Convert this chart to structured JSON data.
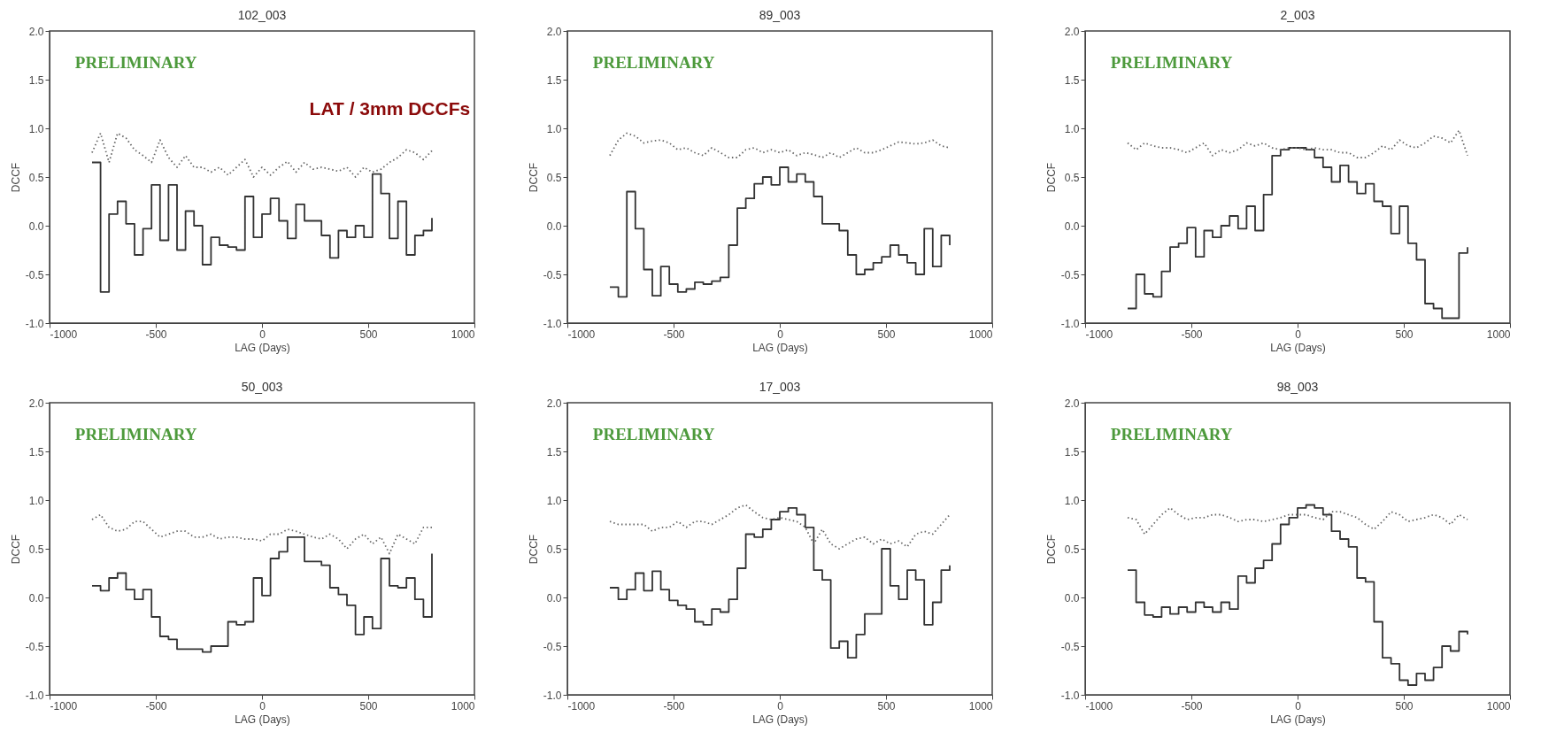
{
  "chart_data": [
    {
      "type": "step",
      "title": "102_003",
      "xlabel": "LAG (Days)",
      "ylabel": "DCCF",
      "annotations": [
        "PRELIMINARY",
        "LAT / 3mm DCCFs"
      ],
      "x": [
        -800,
        -760,
        -720,
        -680,
        -640,
        -600,
        -560,
        -520,
        -480,
        -440,
        -400,
        -360,
        -320,
        -280,
        -240,
        -200,
        -160,
        -120,
        -80,
        -40,
        0,
        40,
        80,
        120,
        160,
        200,
        240,
        280,
        320,
        360,
        400,
        440,
        480,
        520,
        560,
        600,
        640,
        680,
        720,
        760,
        800
      ],
      "series": [
        {
          "color": "#333333",
          "line_style": "solid",
          "values": [
            0.65,
            -0.68,
            0.12,
            0.25,
            0.02,
            -0.3,
            -0.03,
            0.42,
            -0.15,
            0.42,
            -0.25,
            0.15,
            0.0,
            -0.4,
            -0.12,
            -0.2,
            -0.22,
            -0.25,
            0.3,
            -0.12,
            0.12,
            0.28,
            0.05,
            -0.13,
            0.22,
            0.05,
            0.05,
            -0.1,
            -0.33,
            -0.05,
            -0.12,
            0.0,
            -0.12,
            0.53,
            0.33,
            -0.13,
            0.25,
            -0.3,
            -0.1,
            -0.05,
            0.08
          ]
        },
        {
          "type": "line",
          "color": "#666666",
          "line_style": "dotted",
          "values": [
            0.75,
            0.95,
            0.65,
            0.95,
            0.9,
            0.78,
            0.72,
            0.65,
            0.88,
            0.7,
            0.6,
            0.72,
            0.6,
            0.6,
            0.55,
            0.6,
            0.52,
            0.6,
            0.68,
            0.5,
            0.6,
            0.52,
            0.6,
            0.66,
            0.55,
            0.65,
            0.58,
            0.6,
            0.58,
            0.56,
            0.6,
            0.5,
            0.6,
            0.55,
            0.58,
            0.65,
            0.7,
            0.78,
            0.75,
            0.68,
            0.77
          ]
        }
      ],
      "xlim": [
        -1000,
        1000
      ],
      "xticks": [
        -1000,
        -500,
        0,
        500,
        1000
      ],
      "ylim": [
        -1,
        2
      ],
      "yticks": [
        {
          "value": -1,
          "label": "-1.0"
        },
        {
          "value": -0.5,
          "label": "-0.5"
        },
        {
          "value": 0,
          "label": "0.0"
        },
        {
          "value": 0.5,
          "label": "0.5"
        },
        {
          "value": 1,
          "label": "1.0"
        },
        {
          "value": 1.5,
          "label": "1.5"
        },
        {
          "value": 2,
          "label": "2.0"
        }
      ]
    },
    {
      "type": "step",
      "title": "89_003",
      "xlabel": "LAG (Days)",
      "ylabel": "DCCF",
      "annotations": [
        "PRELIMINARY"
      ],
      "x": [
        -800,
        -760,
        -720,
        -680,
        -640,
        -600,
        -560,
        -520,
        -480,
        -440,
        -400,
        -360,
        -320,
        -280,
        -240,
        -200,
        -160,
        -120,
        -80,
        -40,
        0,
        40,
        80,
        120,
        160,
        200,
        240,
        280,
        320,
        360,
        400,
        440,
        480,
        520,
        560,
        600,
        640,
        680,
        720,
        760,
        800
      ],
      "series": [
        {
          "color": "#333333",
          "line_style": "solid",
          "values": [
            -0.63,
            -0.73,
            0.35,
            -0.03,
            -0.45,
            -0.72,
            -0.42,
            -0.6,
            -0.68,
            -0.65,
            -0.58,
            -0.6,
            -0.57,
            -0.53,
            -0.2,
            0.18,
            0.28,
            0.43,
            0.5,
            0.42,
            0.6,
            0.45,
            0.53,
            0.45,
            0.3,
            0.02,
            0.02,
            -0.05,
            -0.3,
            -0.5,
            -0.45,
            -0.38,
            -0.32,
            -0.2,
            -0.3,
            -0.38,
            -0.5,
            -0.03,
            -0.42,
            -0.1,
            -0.2
          ]
        },
        {
          "type": "line",
          "color": "#666666",
          "line_style": "dotted",
          "values": [
            0.72,
            0.88,
            0.95,
            0.92,
            0.85,
            0.87,
            0.88,
            0.85,
            0.78,
            0.8,
            0.75,
            0.72,
            0.8,
            0.75,
            0.7,
            0.7,
            0.78,
            0.8,
            0.75,
            0.78,
            0.75,
            0.78,
            0.72,
            0.75,
            0.73,
            0.7,
            0.75,
            0.7,
            0.75,
            0.8,
            0.75,
            0.75,
            0.78,
            0.82,
            0.86,
            0.85,
            0.84,
            0.85,
            0.88,
            0.82,
            0.8
          ]
        }
      ],
      "xlim": [
        -1000,
        1000
      ],
      "xticks": [
        -1000,
        -500,
        0,
        500,
        1000
      ],
      "ylim": [
        -1,
        2
      ],
      "yticks": [
        {
          "value": -1,
          "label": "-1.0"
        },
        {
          "value": -0.5,
          "label": "-0.5"
        },
        {
          "value": 0,
          "label": "0.0"
        },
        {
          "value": 0.5,
          "label": "0.5"
        },
        {
          "value": 1,
          "label": "1.0"
        },
        {
          "value": 1.5,
          "label": "1.5"
        },
        {
          "value": 2,
          "label": "2.0"
        }
      ]
    },
    {
      "type": "step",
      "title": "2_003",
      "xlabel": "LAG (Days)",
      "ylabel": "DCCF",
      "annotations": [
        "PRELIMINARY"
      ],
      "x": [
        -800,
        -760,
        -720,
        -680,
        -640,
        -600,
        -560,
        -520,
        -480,
        -440,
        -400,
        -360,
        -320,
        -280,
        -240,
        -200,
        -160,
        -120,
        -80,
        -40,
        0,
        40,
        80,
        120,
        160,
        200,
        240,
        280,
        320,
        360,
        400,
        440,
        480,
        520,
        560,
        600,
        640,
        680,
        720,
        760,
        800
      ],
      "series": [
        {
          "color": "#333333",
          "line_style": "solid",
          "values": [
            -0.85,
            -0.5,
            -0.7,
            -0.73,
            -0.47,
            -0.22,
            -0.18,
            -0.02,
            -0.32,
            -0.05,
            -0.12,
            0.0,
            0.1,
            -0.03,
            0.2,
            -0.05,
            0.32,
            0.72,
            0.78,
            0.8,
            0.8,
            0.78,
            0.7,
            0.6,
            0.45,
            0.62,
            0.45,
            0.33,
            0.43,
            0.25,
            0.2,
            -0.08,
            0.2,
            -0.18,
            -0.35,
            -0.8,
            -0.85,
            -0.95,
            -0.95,
            -0.28,
            -0.22
          ]
        },
        {
          "type": "line",
          "color": "#666666",
          "line_style": "dotted",
          "values": [
            0.85,
            0.78,
            0.85,
            0.82,
            0.8,
            0.8,
            0.78,
            0.75,
            0.8,
            0.85,
            0.72,
            0.78,
            0.75,
            0.78,
            0.85,
            0.82,
            0.85,
            0.8,
            0.78,
            0.8,
            0.8,
            0.78,
            0.8,
            0.78,
            0.78,
            0.75,
            0.75,
            0.7,
            0.7,
            0.75,
            0.82,
            0.78,
            0.88,
            0.82,
            0.8,
            0.85,
            0.92,
            0.9,
            0.85,
            0.98,
            0.72
          ]
        }
      ],
      "xlim": [
        -1000,
        1000
      ],
      "xticks": [
        -1000,
        -500,
        0,
        500,
        1000
      ],
      "ylim": [
        -1,
        2
      ],
      "yticks": [
        {
          "value": -1,
          "label": "-1.0"
        },
        {
          "value": -0.5,
          "label": "-0.5"
        },
        {
          "value": 0,
          "label": "0.0"
        },
        {
          "value": 0.5,
          "label": "0.5"
        },
        {
          "value": 1,
          "label": "1.0"
        },
        {
          "value": 1.5,
          "label": "1.5"
        },
        {
          "value": 2,
          "label": "2.0"
        }
      ]
    },
    {
      "type": "step",
      "title": "50_003",
      "xlabel": "LAG (Days)",
      "ylabel": "DCCF",
      "annotations": [
        "PRELIMINARY"
      ],
      "x": [
        -800,
        -760,
        -720,
        -680,
        -640,
        -600,
        -560,
        -520,
        -480,
        -440,
        -400,
        -360,
        -320,
        -280,
        -240,
        -200,
        -160,
        -120,
        -80,
        -40,
        0,
        40,
        80,
        120,
        160,
        200,
        240,
        280,
        320,
        360,
        400,
        440,
        480,
        520,
        560,
        600,
        640,
        680,
        720,
        760,
        800
      ],
      "series": [
        {
          "color": "#333333",
          "line_style": "solid",
          "values": [
            0.12,
            0.07,
            0.2,
            0.25,
            0.08,
            -0.02,
            0.08,
            -0.2,
            -0.4,
            -0.43,
            -0.53,
            -0.53,
            -0.53,
            -0.56,
            -0.5,
            -0.5,
            -0.25,
            -0.28,
            -0.25,
            0.2,
            0.02,
            0.4,
            0.47,
            0.62,
            0.62,
            0.37,
            0.37,
            0.33,
            0.1,
            0.03,
            -0.08,
            -0.38,
            -0.2,
            -0.32,
            0.4,
            0.12,
            0.1,
            0.2,
            -0.02,
            -0.2,
            0.45
          ]
        },
        {
          "type": "line",
          "color": "#666666",
          "line_style": "dotted",
          "values": [
            0.8,
            0.85,
            0.72,
            0.68,
            0.7,
            0.78,
            0.78,
            0.7,
            0.62,
            0.65,
            0.68,
            0.68,
            0.62,
            0.62,
            0.65,
            0.6,
            0.62,
            0.62,
            0.6,
            0.6,
            0.58,
            0.65,
            0.65,
            0.7,
            0.68,
            0.65,
            0.62,
            0.6,
            0.65,
            0.6,
            0.5,
            0.6,
            0.65,
            0.55,
            0.62,
            0.45,
            0.65,
            0.6,
            0.55,
            0.72,
            0.72
          ]
        }
      ],
      "xlim": [
        -1000,
        1000
      ],
      "xticks": [
        -1000,
        -500,
        0,
        500,
        1000
      ],
      "ylim": [
        -1,
        2
      ],
      "yticks": [
        {
          "value": -1,
          "label": "-1.0"
        },
        {
          "value": -0.5,
          "label": "-0.5"
        },
        {
          "value": 0,
          "label": "0.0"
        },
        {
          "value": 0.5,
          "label": "0.5"
        },
        {
          "value": 1,
          "label": "1.0"
        },
        {
          "value": 1.5,
          "label": "1.5"
        },
        {
          "value": 2,
          "label": "2.0"
        }
      ]
    },
    {
      "type": "step",
      "title": "17_003",
      "xlabel": "LAG (Days)",
      "ylabel": "DCCF",
      "annotations": [
        "PRELIMINARY"
      ],
      "x": [
        -800,
        -760,
        -720,
        -680,
        -640,
        -600,
        -560,
        -520,
        -480,
        -440,
        -400,
        -360,
        -320,
        -280,
        -240,
        -200,
        -160,
        -120,
        -80,
        -40,
        0,
        40,
        80,
        120,
        160,
        200,
        240,
        280,
        320,
        360,
        400,
        440,
        480,
        520,
        560,
        600,
        640,
        680,
        720,
        760,
        800
      ],
      "series": [
        {
          "color": "#333333",
          "line_style": "solid",
          "values": [
            0.1,
            -0.02,
            0.08,
            0.25,
            0.07,
            0.27,
            0.08,
            -0.03,
            -0.08,
            -0.12,
            -0.25,
            -0.28,
            -0.12,
            -0.15,
            -0.02,
            0.3,
            0.65,
            0.62,
            0.7,
            0.8,
            0.88,
            0.92,
            0.85,
            0.72,
            0.28,
            0.18,
            -0.52,
            -0.45,
            -0.62,
            -0.38,
            -0.17,
            -0.17,
            0.5,
            0.12,
            -0.02,
            0.28,
            0.18,
            -0.28,
            -0.05,
            0.28,
            0.33
          ]
        },
        {
          "type": "line",
          "color": "#666666",
          "line_style": "dotted",
          "values": [
            0.78,
            0.75,
            0.75,
            0.75,
            0.75,
            0.68,
            0.72,
            0.72,
            0.78,
            0.72,
            0.78,
            0.78,
            0.75,
            0.8,
            0.85,
            0.92,
            0.95,
            0.88,
            0.82,
            0.8,
            0.82,
            0.8,
            0.78,
            0.72,
            0.55,
            0.7,
            0.55,
            0.5,
            0.55,
            0.6,
            0.62,
            0.55,
            0.6,
            0.55,
            0.58,
            0.52,
            0.65,
            0.68,
            0.65,
            0.75,
            0.85
          ]
        }
      ],
      "xlim": [
        -1000,
        1000
      ],
      "xticks": [
        -1000,
        -500,
        0,
        500,
        1000
      ],
      "ylim": [
        -1,
        2
      ],
      "yticks": [
        {
          "value": -1,
          "label": "-1.0"
        },
        {
          "value": -0.5,
          "label": "-0.5"
        },
        {
          "value": 0,
          "label": "0.0"
        },
        {
          "value": 0.5,
          "label": "0.5"
        },
        {
          "value": 1,
          "label": "1.0"
        },
        {
          "value": 1.5,
          "label": "1.5"
        },
        {
          "value": 2,
          "label": "2.0"
        }
      ]
    },
    {
      "type": "step",
      "title": "98_003",
      "xlabel": "LAG (Days)",
      "ylabel": "DCCF",
      "annotations": [
        "PRELIMINARY"
      ],
      "x": [
        -800,
        -760,
        -720,
        -680,
        -640,
        -600,
        -560,
        -520,
        -480,
        -440,
        -400,
        -360,
        -320,
        -280,
        -240,
        -200,
        -160,
        -120,
        -80,
        -40,
        0,
        40,
        80,
        120,
        160,
        200,
        240,
        280,
        320,
        360,
        400,
        440,
        480,
        520,
        560,
        600,
        640,
        680,
        720,
        760,
        800
      ],
      "series": [
        {
          "color": "#333333",
          "line_style": "solid",
          "values": [
            0.28,
            -0.05,
            -0.18,
            -0.2,
            -0.1,
            -0.17,
            -0.1,
            -0.15,
            -0.05,
            -0.1,
            -0.15,
            -0.05,
            -0.12,
            0.22,
            0.15,
            0.3,
            0.38,
            0.55,
            0.75,
            0.82,
            0.92,
            0.95,
            0.92,
            0.85,
            0.68,
            0.6,
            0.52,
            0.2,
            0.16,
            -0.25,
            -0.62,
            -0.68,
            -0.85,
            -0.9,
            -0.78,
            -0.85,
            -0.72,
            -0.5,
            -0.55,
            -0.35,
            -0.38
          ]
        },
        {
          "type": "line",
          "color": "#666666",
          "line_style": "dotted",
          "values": [
            0.82,
            0.8,
            0.65,
            0.75,
            0.85,
            0.92,
            0.85,
            0.8,
            0.82,
            0.82,
            0.85,
            0.85,
            0.82,
            0.78,
            0.8,
            0.8,
            0.78,
            0.8,
            0.82,
            0.85,
            0.85,
            0.85,
            0.82,
            0.8,
            0.88,
            0.88,
            0.85,
            0.82,
            0.75,
            0.7,
            0.78,
            0.88,
            0.85,
            0.78,
            0.8,
            0.82,
            0.85,
            0.82,
            0.75,
            0.85,
            0.8
          ]
        }
      ],
      "xlim": [
        -1000,
        1000
      ],
      "xticks": [
        -1000,
        -500,
        0,
        500,
        1000
      ],
      "ylim": [
        -1,
        2
      ],
      "yticks": [
        {
          "value": -1,
          "label": "-1.0"
        },
        {
          "value": -0.5,
          "label": "-0.5"
        },
        {
          "value": 0,
          "label": "0.0"
        },
        {
          "value": 0.5,
          "label": "0.5"
        },
        {
          "value": 1,
          "label": "1.0"
        },
        {
          "value": 1.5,
          "label": "1.5"
        },
        {
          "value": 2,
          "label": "2.0"
        }
      ]
    }
  ]
}
